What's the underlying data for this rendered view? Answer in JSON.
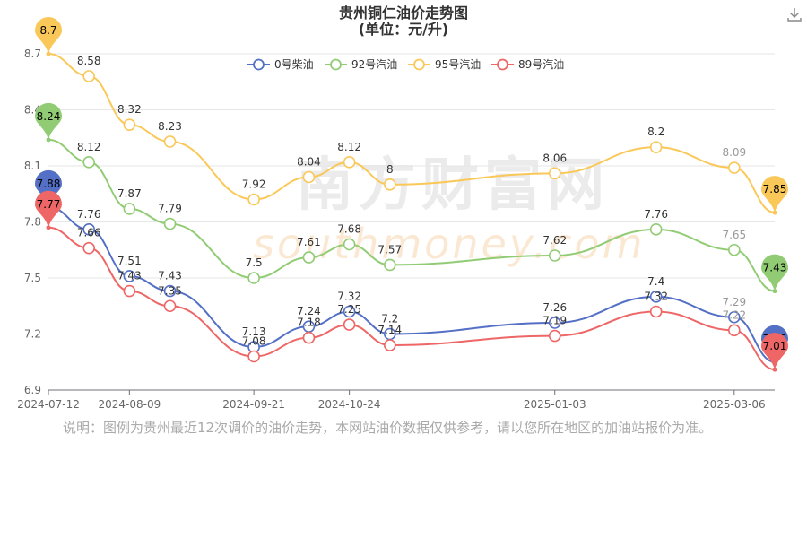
{
  "chart_data": {
    "type": "line",
    "title": "贵州铜仁油价走势图",
    "subtitle": "(单位：元/升)",
    "ylim": [
      6.9,
      8.7
    ],
    "yticks": [
      6.9,
      7.2,
      7.5,
      7.8,
      8.1,
      8.4,
      8.7
    ],
    "x": [
      "2024-07-12",
      "2024-07-26",
      "2024-08-09",
      "2024-08-23",
      "2024-09-21",
      "2024-10-10",
      "2024-10-24",
      "2024-11-07",
      "2025-01-03",
      "2025-02-07",
      "2025-03-06",
      "2025-03-20"
    ],
    "xticks": [
      "2024-07-12",
      "2024-08-09",
      "2024-09-21",
      "2024-10-24",
      "2025-01-03",
      "2025-03-06"
    ],
    "legend_position": "top-center",
    "grid": true,
    "series": [
      {
        "name": "0号柴油",
        "color": "#5470c6",
        "values": [
          7.88,
          7.76,
          7.51,
          7.43,
          7.13,
          7.24,
          7.32,
          7.2,
          7.26,
          7.4,
          7.29,
          7.05
        ]
      },
      {
        "name": "92号汽油",
        "color": "#91cc75",
        "values": [
          8.24,
          8.12,
          7.87,
          7.79,
          7.5,
          7.61,
          7.68,
          7.57,
          7.62,
          7.76,
          7.65,
          7.43
        ]
      },
      {
        "name": "95号汽油",
        "color": "#fac858",
        "values": [
          8.7,
          8.58,
          8.32,
          8.23,
          7.92,
          8.04,
          8.12,
          8.0,
          8.06,
          8.2,
          8.09,
          7.85
        ]
      },
      {
        "name": "89号汽油",
        "color": "#ee6666",
        "values": [
          7.77,
          7.66,
          7.43,
          7.35,
          7.08,
          7.18,
          7.25,
          7.14,
          7.19,
          7.32,
          7.22,
          7.01
        ]
      }
    ],
    "note": "说明：图例为贵州最近12次调价的油价走势，本网站油价数据仅供参考，请以您所在地区的加油站报价为准。"
  },
  "watermark": {
    "cn": "南方财富网",
    "en": "southmoney.com"
  },
  "toolbar": {
    "download_icon": "download-icon"
  }
}
